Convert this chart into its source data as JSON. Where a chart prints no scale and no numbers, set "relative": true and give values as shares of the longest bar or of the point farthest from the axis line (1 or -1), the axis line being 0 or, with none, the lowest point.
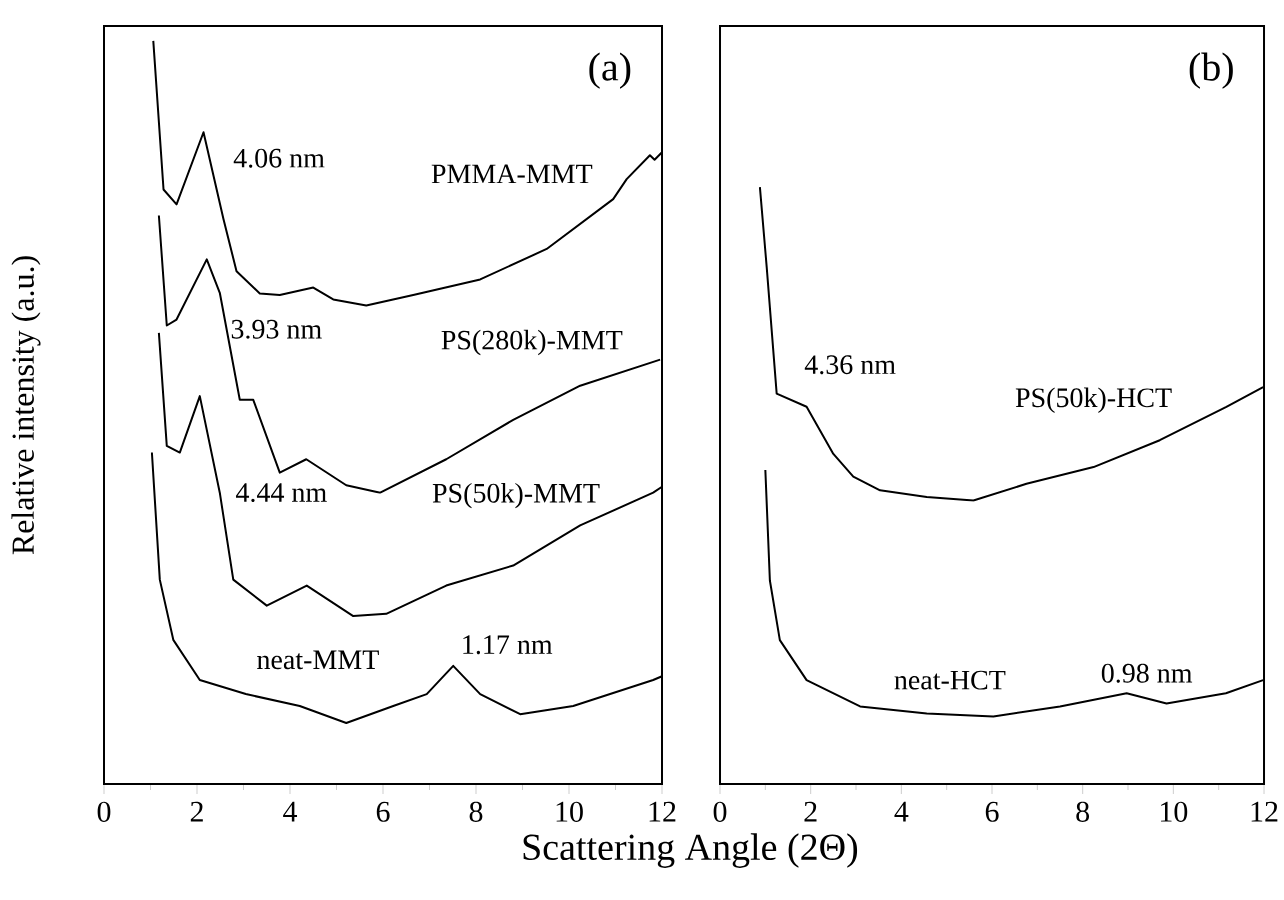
{
  "chart_data": [
    {
      "type": "line",
      "relative": true,
      "title": "(a)",
      "ylabel": "Relative intensity (a.u.)",
      "xlabel": "Scattering Angle (2Θ)",
      "xlim": [
        0,
        12
      ],
      "xticks": [
        0,
        2,
        4,
        6,
        8,
        10,
        12
      ],
      "tick_labels": "x",
      "marker": "none",
      "line_style": "solid",
      "annotations": [
        {
          "text": "4.06 nm",
          "x": 2.14,
          "y": 0.877
        },
        {
          "text": "3.93 nm",
          "x": 2.21,
          "y": 0.706
        },
        {
          "text": "4.44 nm",
          "x": 2.49,
          "y": 0.392
        },
        {
          "text": "1.17 nm",
          "x": 7.51,
          "y": 0.159
        }
      ],
      "series": [
        {
          "name": "PMMA-MMT",
          "color": "#000000",
          "x": [
            1.06,
            1.28,
            1.56,
            2.14,
            2.57,
            2.85,
            3.35,
            3.78,
            4.5,
            4.93,
            5.64,
            6.65,
            8.09,
            9.52,
            10.95,
            11.24,
            11.74,
            11.84,
            12.0
          ],
          "values": [
            1.0,
            0.8,
            0.78,
            0.877,
            0.76,
            0.69,
            0.66,
            0.658,
            0.668,
            0.652,
            0.644,
            0.658,
            0.679,
            0.72,
            0.787,
            0.814,
            0.846,
            0.84,
            0.85
          ]
        },
        {
          "name": "PS(280k)-MMT",
          "color": "#000000",
          "x": [
            1.18,
            1.35,
            1.56,
            2.21,
            2.49,
            2.92,
            3.21,
            3.78,
            4.35,
            5.21,
            5.94,
            7.36,
            8.8,
            10.24,
            11.96
          ],
          "values": [
            0.765,
            0.617,
            0.625,
            0.706,
            0.661,
            0.517,
            0.517,
            0.419,
            0.437,
            0.402,
            0.392,
            0.437,
            0.49,
            0.536,
            0.571
          ]
        },
        {
          "name": "PS(50k)-MMT",
          "color": "#000000",
          "x": [
            1.18,
            1.35,
            1.63,
            2.06,
            2.49,
            2.78,
            3.5,
            4.36,
            5.36,
            6.07,
            7.36,
            8.8,
            10.24,
            11.81,
            12.0
          ],
          "values": [
            0.607,
            0.455,
            0.446,
            0.522,
            0.392,
            0.275,
            0.24,
            0.267,
            0.226,
            0.229,
            0.267,
            0.294,
            0.348,
            0.392,
            0.4
          ]
        },
        {
          "name": "neat-MMT",
          "color": "#000000",
          "x": [
            1.03,
            1.2,
            1.49,
            2.06,
            3.05,
            4.21,
            5.21,
            6.22,
            6.94,
            7.51,
            8.09,
            8.95,
            10.09,
            11.81,
            12.0
          ],
          "values": [
            0.446,
            0.275,
            0.194,
            0.14,
            0.121,
            0.105,
            0.082,
            0.105,
            0.121,
            0.159,
            0.121,
            0.094,
            0.105,
            0.14,
            0.145
          ]
        }
      ]
    },
    {
      "type": "line",
      "relative": true,
      "title": "(b)",
      "xlim": [
        0,
        12
      ],
      "xticks": [
        0,
        2,
        4,
        6,
        8,
        10,
        12
      ],
      "tick_labels": "x",
      "marker": "none",
      "line_style": "solid",
      "annotations": [
        {
          "text": "4.36 nm",
          "x": 1.91,
          "y": 0.632
        },
        {
          "text": "0.98 nm",
          "x": 8.97,
          "y": 0.152
        }
      ],
      "series": [
        {
          "name": "PS(50k)-HCT",
          "color": "#000000",
          "x": [
            0.88,
            1.03,
            1.25,
            1.91,
            2.5,
            2.94,
            3.53,
            4.56,
            5.59,
            6.76,
            8.24,
            9.7,
            11.17,
            11.98
          ],
          "values": [
            1.0,
            0.866,
            0.654,
            0.632,
            0.553,
            0.515,
            0.492,
            0.481,
            0.475,
            0.503,
            0.531,
            0.576,
            0.632,
            0.665
          ]
        },
        {
          "name": "neat-HCT",
          "color": "#000000",
          "x": [
            1.0,
            1.1,
            1.32,
            1.91,
            3.09,
            4.56,
            6.03,
            7.5,
            8.97,
            9.85,
            11.16,
            11.98
          ],
          "values": [
            0.526,
            0.341,
            0.241,
            0.174,
            0.13,
            0.118,
            0.113,
            0.13,
            0.152,
            0.135,
            0.152,
            0.174
          ]
        }
      ]
    }
  ]
}
